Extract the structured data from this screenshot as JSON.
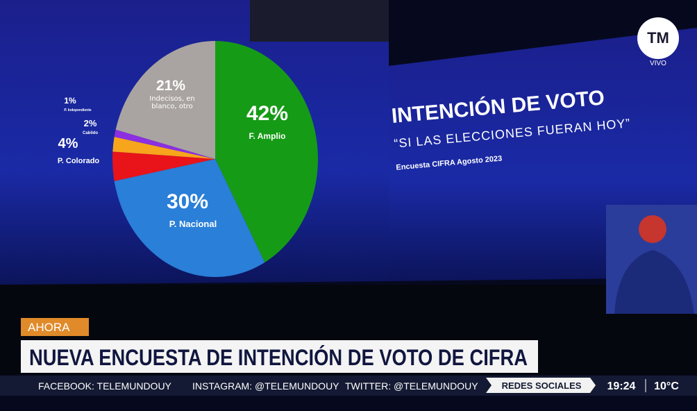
{
  "chart_data": {
    "type": "pie",
    "title": "INTENCIÓN DE VOTO",
    "subtitle": "“SI LAS ELECCIONES FUERAN HOY”",
    "source": "Encuesta CIFRA Agosto 2023",
    "categories": [
      "F. Amplio",
      "P. Nacional",
      "P. Colorado",
      "Cabildo",
      "P. Independiente",
      "Indecisos, en blanco, otro"
    ],
    "values": [
      42,
      30,
      4,
      2,
      1,
      21
    ],
    "value_labels": [
      "42%",
      "30%",
      "4%",
      "2%",
      "1%",
      "21%"
    ],
    "colors": [
      "#169b17",
      "#2a7fd8",
      "#e8141a",
      "#f7a51c",
      "#8b2fe0",
      "#a9a4a1"
    ]
  },
  "broadcast": {
    "logo": "TM",
    "live": "VIVO",
    "tag": "AHORA",
    "headline": "NUEVA ENCUESTA DE INTENCIÓN DE VOTO DE CIFRA",
    "ticker": [
      "FACEBOOK: TELEMUNDOUY",
      "INSTAGRAM: @TELEMUNDOUY",
      "TWITTER: @TELEMUNDOUY"
    ],
    "social": "REDES SOCIALES",
    "time": "19:24",
    "temperature": "10°C"
  }
}
